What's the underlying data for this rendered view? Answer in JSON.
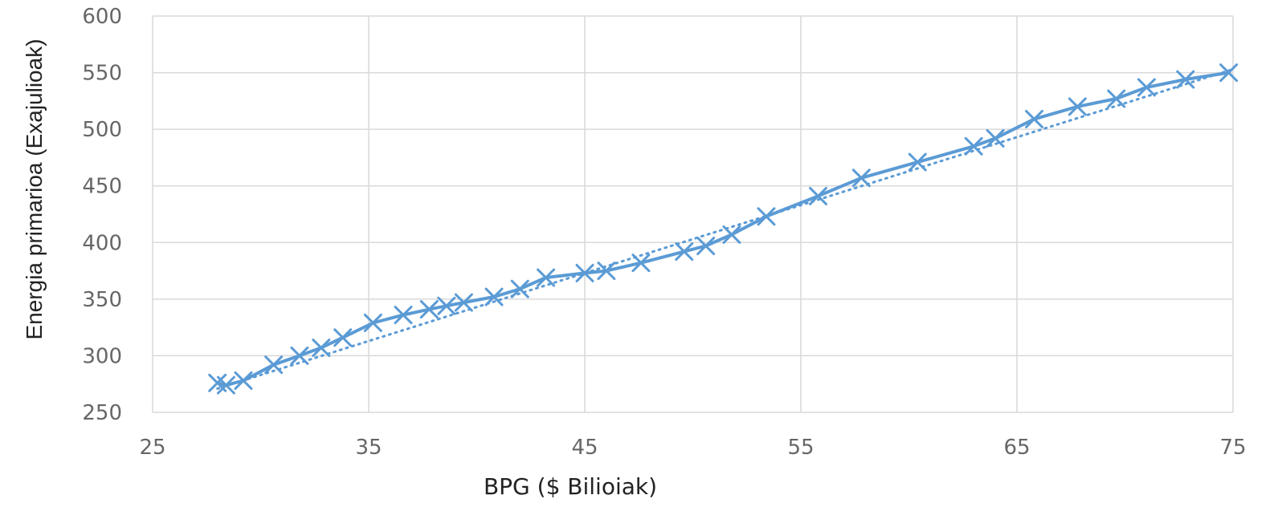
{
  "chart_data": {
    "type": "line",
    "title": "",
    "xlabel": "BPG ($ Bilioiak)",
    "ylabel": "Energia primarioa (Exajulioak)",
    "xlim": [
      25,
      75
    ],
    "ylim": [
      250,
      600
    ],
    "xticks": [
      25,
      35,
      45,
      55,
      65,
      75
    ],
    "yticks": [
      250,
      300,
      350,
      400,
      450,
      500,
      550,
      600
    ],
    "grid": true,
    "legend": "none",
    "series": [
      {
        "marker": "x",
        "color": "#5b9bd5",
        "style": "solid",
        "x": [
          28.0,
          28.4,
          29.2,
          30.6,
          31.8,
          32.8,
          33.8,
          35.2,
          36.6,
          37.8,
          38.6,
          39.4,
          40.8,
          42.0,
          43.2,
          45.0,
          46.0,
          47.6,
          49.6,
          50.6,
          51.8,
          53.4,
          55.8,
          57.8,
          60.4,
          63.0,
          64.0,
          65.8,
          67.8,
          69.6,
          71.0,
          72.8,
          74.8
        ],
        "y": [
          276,
          274,
          278,
          292,
          300,
          307,
          316,
          329,
          336,
          341,
          344,
          347,
          352,
          359,
          369,
          373,
          375,
          382,
          392,
          397,
          407,
          423,
          441,
          457,
          471,
          485,
          492,
          509,
          520,
          527,
          537,
          544,
          550
        ]
      },
      {
        "name": "",
        "color": "#5b9bd5",
        "style": "dotted",
        "x": [
          28.0,
          75.0
        ],
        "y": [
          271,
          553
        ]
      }
    ]
  }
}
